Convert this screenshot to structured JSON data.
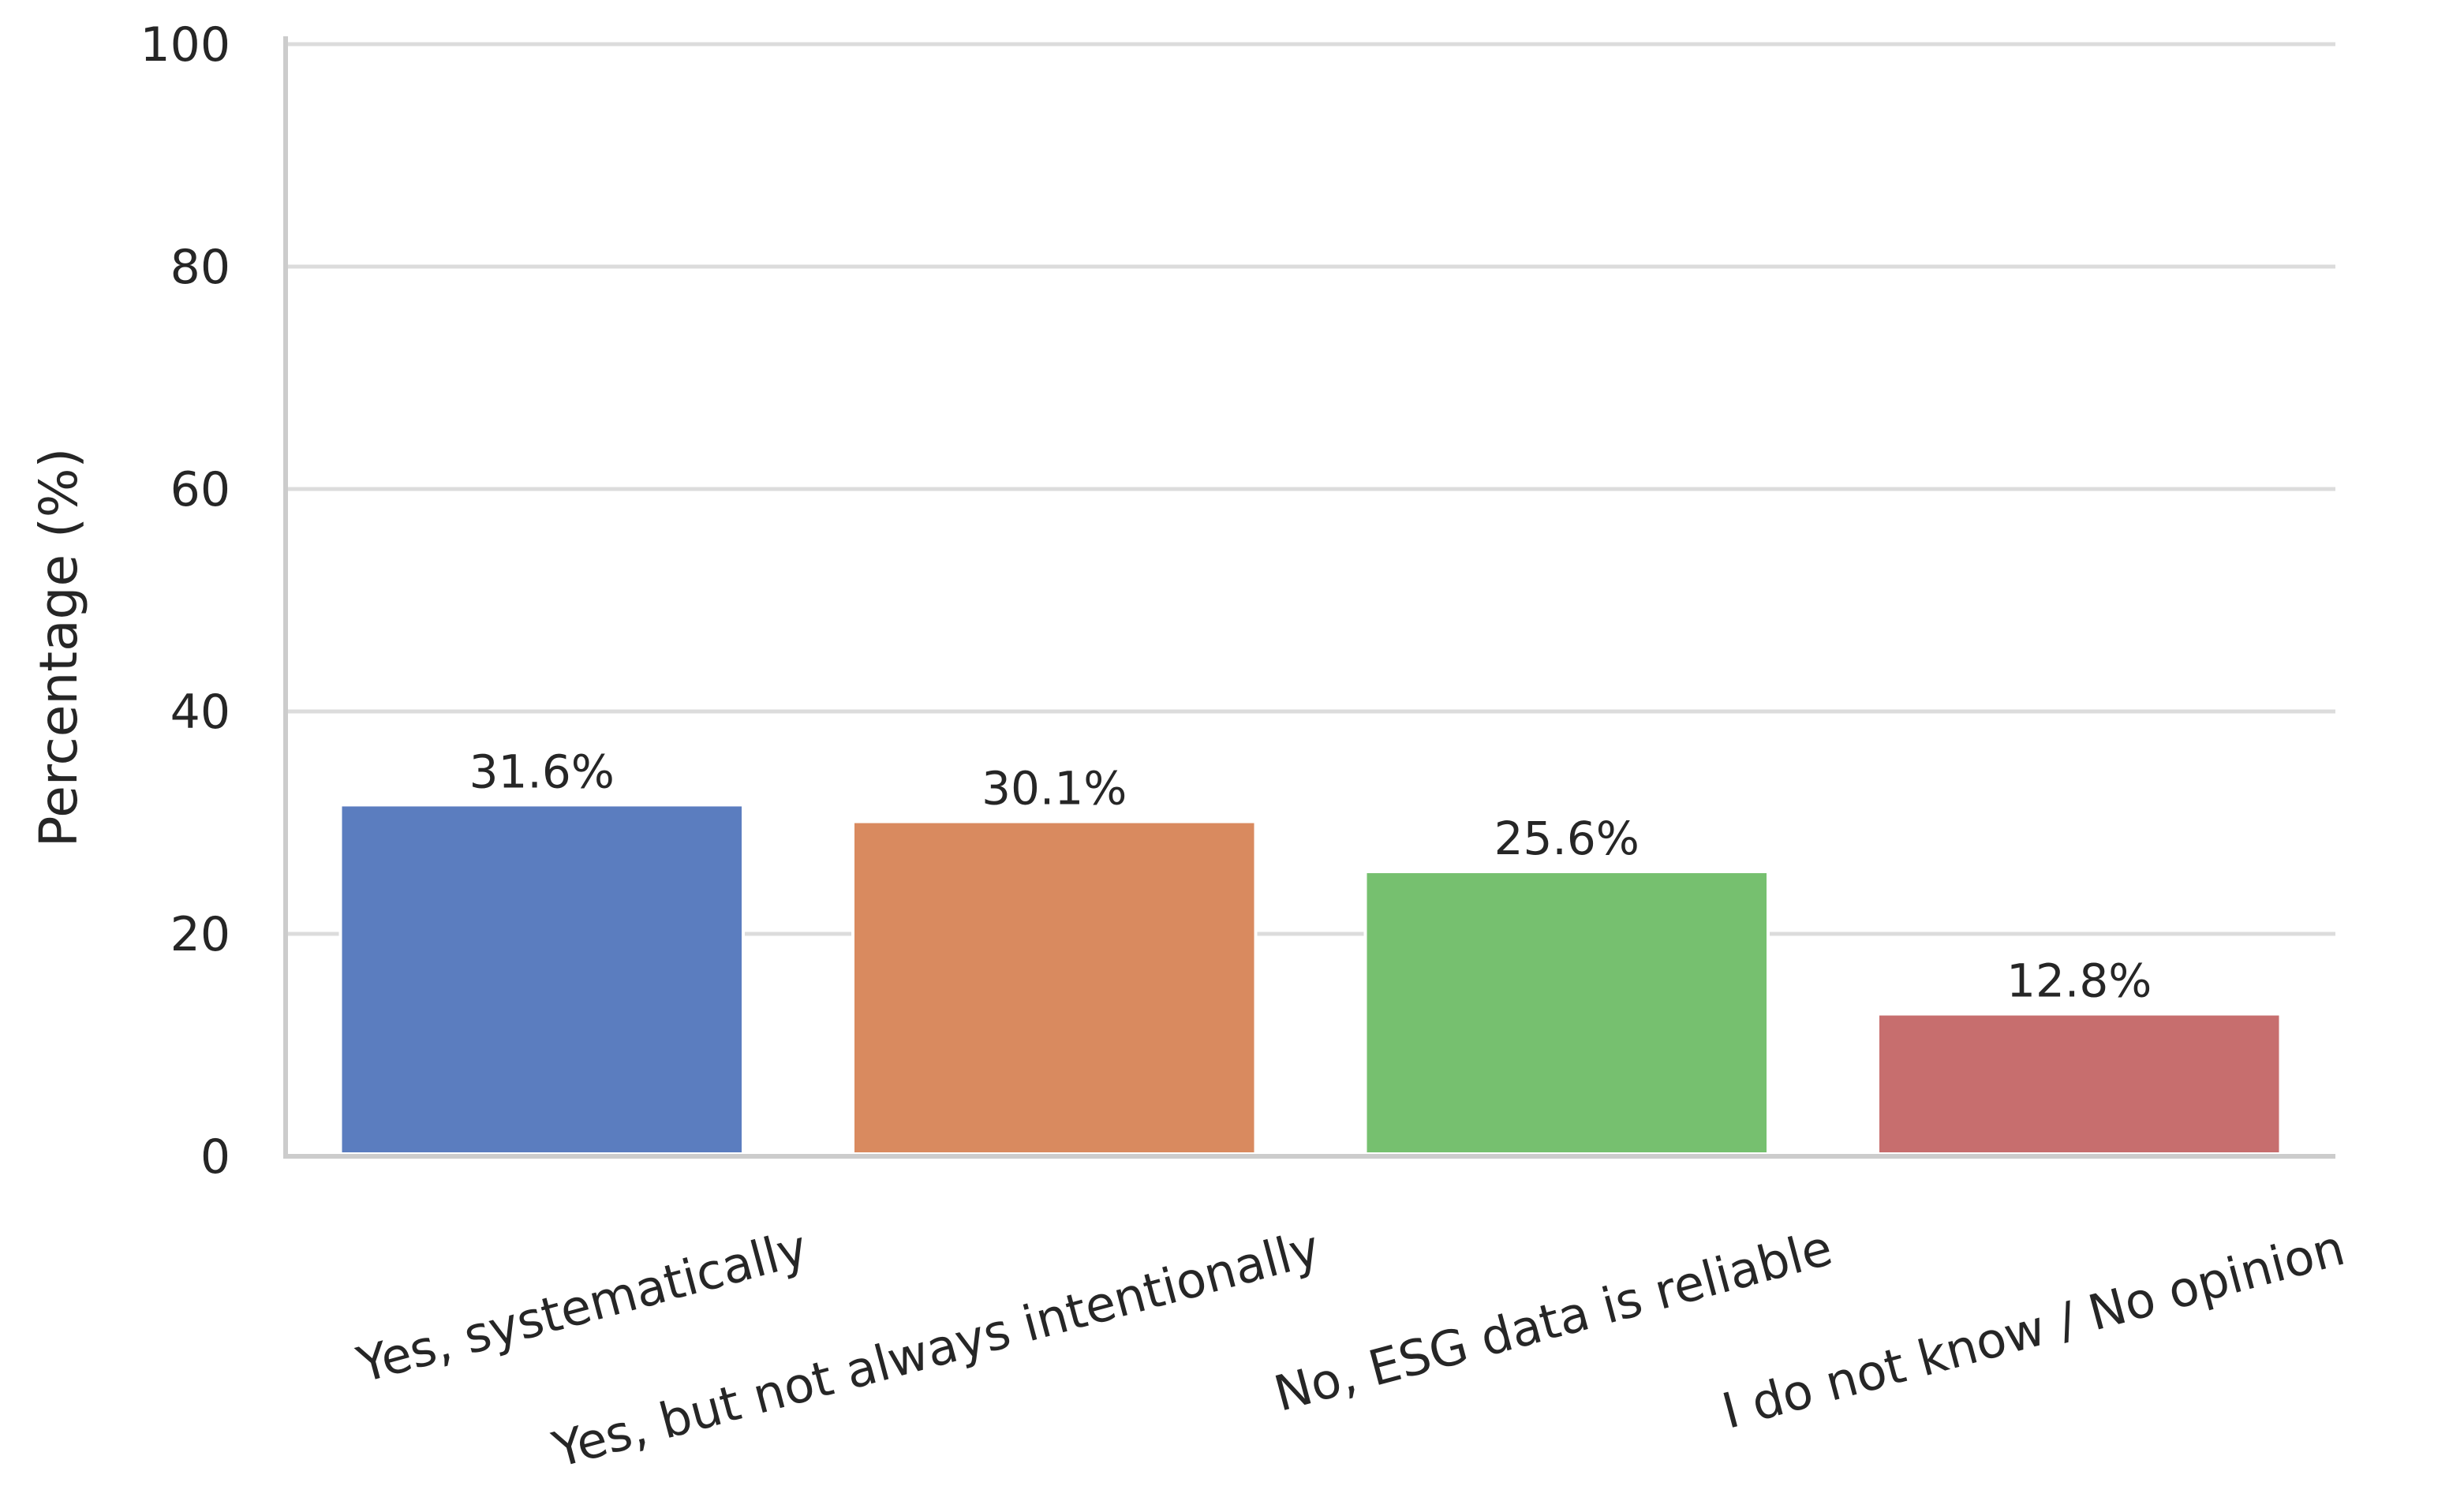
{
  "chart_data": {
    "type": "bar",
    "title": "",
    "xlabel": "",
    "ylabel": "Percentage (%)",
    "ylim": [
      0,
      100
    ],
    "yticks": [
      0,
      20,
      40,
      60,
      80,
      100
    ],
    "grid": "horizontal",
    "categories": [
      "Yes, systematically",
      "Yes, but not always intentionally",
      "No, ESG data is reliable",
      "I do not know / No opinion"
    ],
    "values": [
      31.6,
      30.1,
      25.6,
      12.8
    ],
    "data_labels": [
      "31.6%",
      "30.1%",
      "25.6%",
      "12.8%"
    ],
    "colors": [
      "#5b7dbf",
      "#d98a5f",
      "#76c06f",
      "#c76e6e"
    ]
  }
}
